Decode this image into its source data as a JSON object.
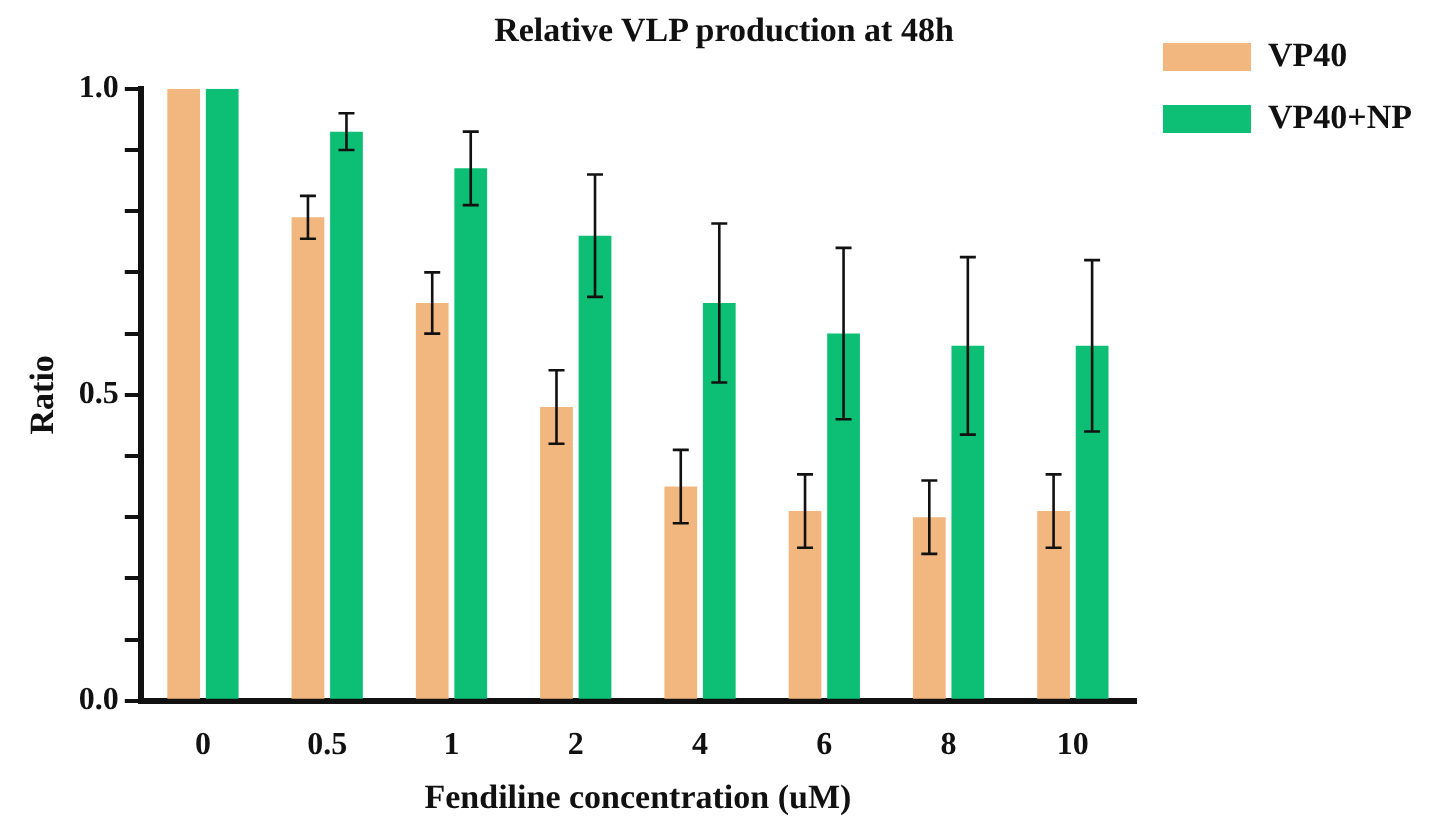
{
  "chart_data": {
    "type": "bar",
    "title": "Relative VLP production at 48h",
    "xlabel": "Fendiline concentration (uM)",
    "ylabel": "Ratio",
    "categories": [
      "0",
      "0.5",
      "1",
      "2",
      "4",
      "6",
      "8",
      "10"
    ],
    "series": [
      {
        "name": "VP40",
        "color": "#f2b77e",
        "values": [
          1.0,
          0.79,
          0.65,
          0.48,
          0.35,
          0.31,
          0.3,
          0.31
        ],
        "errors": [
          null,
          0.035,
          0.05,
          0.06,
          0.06,
          0.06,
          0.06,
          0.06
        ]
      },
      {
        "name": "VP40+NP",
        "color": "#0dbf74",
        "values": [
          1.0,
          0.93,
          0.87,
          0.76,
          0.65,
          0.6,
          0.58,
          0.58
        ],
        "errors": [
          null,
          0.03,
          0.06,
          0.1,
          0.13,
          0.14,
          0.145,
          0.14
        ]
      }
    ],
    "ylim": [
      0,
      1
    ],
    "yticks": [
      {
        "value": 0,
        "label": "0.0"
      },
      {
        "value": 0.1,
        "label": null
      },
      {
        "value": 0.2,
        "label": null
      },
      {
        "value": 0.3,
        "label": null
      },
      {
        "value": 0.4,
        "label": null
      },
      {
        "value": 0.5,
        "label": "0.5"
      },
      {
        "value": 0.6,
        "label": null
      },
      {
        "value": 0.7,
        "label": null
      },
      {
        "value": 0.8,
        "label": null
      },
      {
        "value": 0.9,
        "label": null
      },
      {
        "value": 1,
        "label": "1.0"
      }
    ],
    "grid": false,
    "legend": "top right"
  }
}
